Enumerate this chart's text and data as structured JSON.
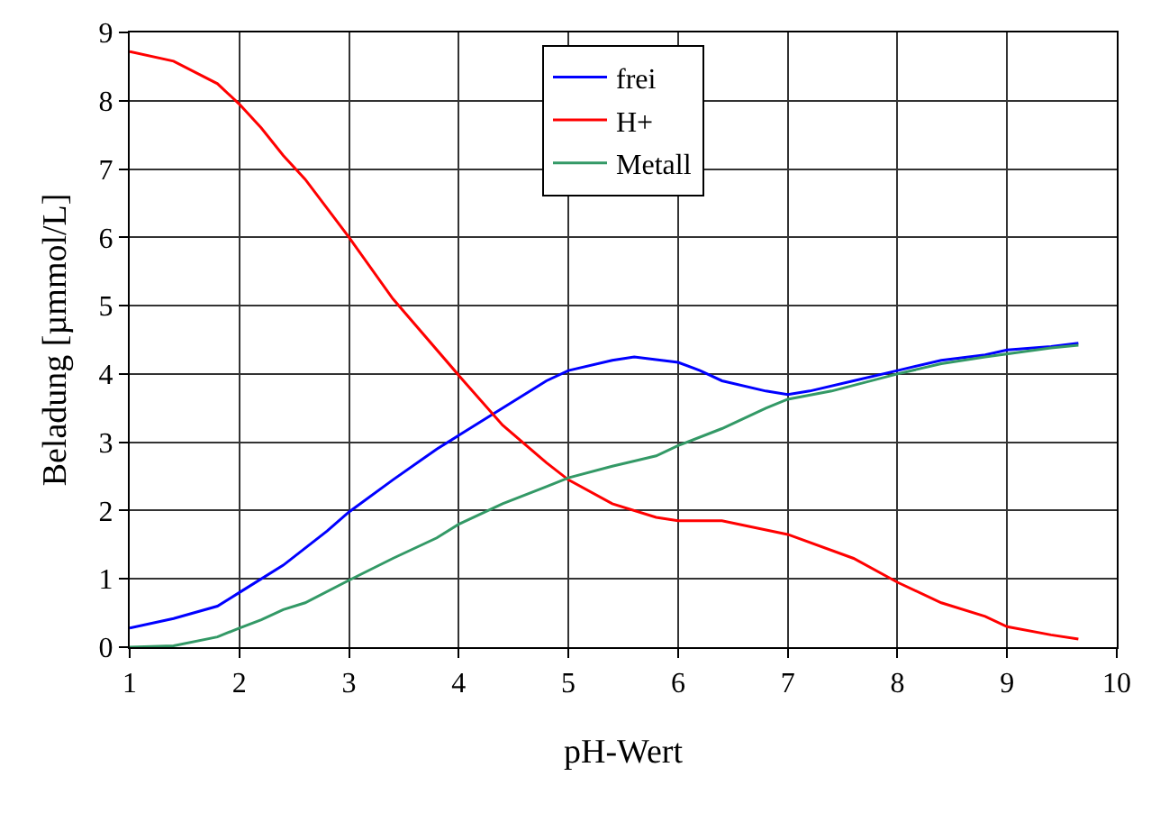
{
  "chart_data": {
    "type": "line",
    "xlabel": "pH-Wert",
    "ylabel": "Beladung [µmmol/L]",
    "xlim": [
      1,
      10
    ],
    "xticks": [
      1,
      2,
      3,
      4,
      5,
      6,
      7,
      8,
      9,
      10
    ],
    "ylim": [
      0,
      9
    ],
    "yticks": [
      0,
      1,
      2,
      3,
      4,
      5,
      6,
      7,
      8,
      9
    ],
    "grid": true,
    "legend": "top",
    "line_style": "solid",
    "marker": "none",
    "series": [
      {
        "name": "frei",
        "color": "#0000ff",
        "x": [
          1,
          1.4,
          1.8,
          2,
          2.4,
          2.8,
          3,
          3.4,
          3.8,
          4,
          4.4,
          4.8,
          5,
          5.4,
          5.6,
          6,
          6.2,
          6.4,
          6.8,
          7,
          7.2,
          7.6,
          8,
          8.4,
          8.8,
          9,
          9.4,
          9.65
        ],
        "values": [
          0.28,
          0.42,
          0.6,
          0.8,
          1.2,
          1.7,
          1.98,
          2.45,
          2.9,
          3.1,
          3.5,
          3.9,
          4.05,
          4.2,
          4.25,
          4.17,
          4.05,
          3.9,
          3.75,
          3.7,
          3.75,
          3.9,
          4.05,
          4.2,
          4.28,
          4.35,
          4.4,
          4.45
        ]
      },
      {
        "name": "H+",
        "color": "#ff0000",
        "x": [
          1,
          1.4,
          1.8,
          2,
          2.2,
          2.4,
          2.6,
          3,
          3.4,
          4,
          4.4,
          4.8,
          5,
          5.4,
          5.8,
          6,
          6.4,
          7,
          7.6,
          8,
          8.4,
          8.8,
          9,
          9.4,
          9.65
        ],
        "values": [
          8.72,
          8.58,
          8.25,
          7.95,
          7.6,
          7.2,
          6.85,
          6.0,
          5.1,
          3.98,
          3.25,
          2.7,
          2.45,
          2.1,
          1.9,
          1.85,
          1.85,
          1.65,
          1.3,
          0.95,
          0.65,
          0.45,
          0.3,
          0.18,
          0.12
        ]
      },
      {
        "name": "Metall",
        "color": "#339966",
        "x": [
          1,
          1.4,
          1.8,
          2,
          2.2,
          2.4,
          2.6,
          3,
          3.4,
          3.8,
          4,
          4.4,
          4.8,
          5,
          5.4,
          5.8,
          6,
          6.4,
          6.8,
          7,
          7.4,
          8,
          8.4,
          8.8,
          9.4,
          9.65
        ],
        "values": [
          0.0,
          0.02,
          0.15,
          0.28,
          0.4,
          0.55,
          0.65,
          0.98,
          1.3,
          1.6,
          1.8,
          2.1,
          2.35,
          2.48,
          2.65,
          2.8,
          2.95,
          3.2,
          3.5,
          3.63,
          3.75,
          4.0,
          4.15,
          4.25,
          4.38,
          4.42
        ]
      }
    ]
  }
}
